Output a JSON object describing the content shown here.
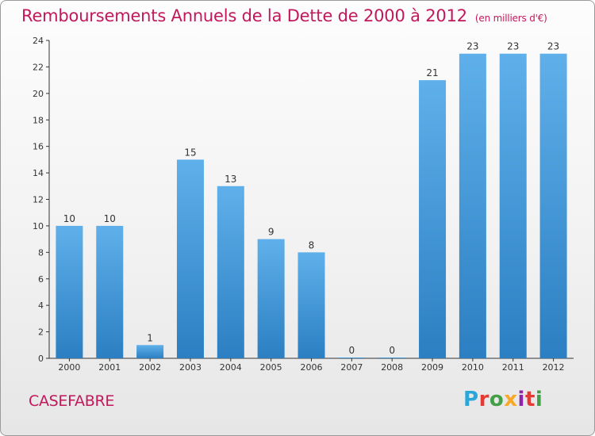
{
  "header": {
    "title": "Remboursements Annuels de la Dette de 2000 à 2012",
    "unit": "(en milliers d'€)"
  },
  "footer": {
    "commune": "CASEFABRE",
    "logo_text": "Proxiti",
    "logo_colors": [
      "#2aa6d8",
      "#e53935",
      "#43a047",
      "#f9a825",
      "#8e24aa",
      "#e53935",
      "#43a047"
    ]
  },
  "colors": {
    "bar_top": "#5fb0ea",
    "bar_bottom": "#2b7fc2",
    "title": "#c2185b"
  },
  "chart_data": {
    "type": "bar",
    "title": "Remboursements Annuels de la Dette de 2000 à 2012",
    "subtitle": "(en milliers d'€)",
    "xlabel": "",
    "ylabel": "",
    "categories": [
      "2000",
      "2001",
      "2002",
      "2003",
      "2004",
      "2005",
      "2006",
      "2007",
      "2008",
      "2009",
      "2010",
      "2011",
      "2012"
    ],
    "values": [
      10,
      10,
      1,
      15,
      13,
      9,
      8,
      0,
      0,
      21,
      23,
      23,
      23
    ],
    "ylim": [
      0,
      24
    ],
    "yticks": [
      0,
      2,
      4,
      6,
      8,
      10,
      12,
      14,
      16,
      18,
      20,
      22,
      24
    ],
    "grid": false,
    "data_labels": true
  }
}
